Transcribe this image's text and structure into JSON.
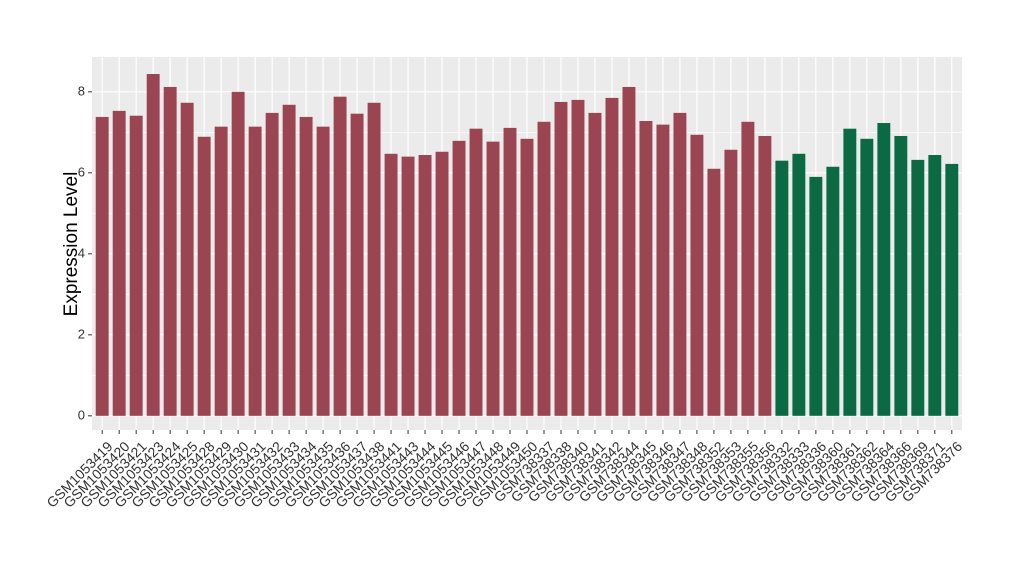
{
  "chart_data": {
    "type": "bar",
    "ylabel": "Expression Level",
    "categories": [
      "GSM1053419",
      "GSM1053420",
      "GSM1053421",
      "GSM1053423",
      "GSM1053424",
      "GSM1053425",
      "GSM1053428",
      "GSM1053429",
      "GSM1053430",
      "GSM1053431",
      "GSM1053432",
      "GSM1053433",
      "GSM1053434",
      "GSM1053435",
      "GSM1053436",
      "GSM1053437",
      "GSM1053438",
      "GSM1053441",
      "GSM1053443",
      "GSM1053444",
      "GSM1053445",
      "GSM1053446",
      "GSM1053447",
      "GSM1053448",
      "GSM1053449",
      "GSM1053450",
      "GSM738337",
      "GSM738338",
      "GSM738340",
      "GSM738341",
      "GSM738342",
      "GSM738344",
      "GSM738345",
      "GSM738346",
      "GSM738347",
      "GSM738348",
      "GSM738352",
      "GSM738353",
      "GSM738355",
      "GSM738356",
      "GSM738332",
      "GSM738333",
      "GSM738336",
      "GSM738360",
      "GSM738361",
      "GSM738362",
      "GSM738364",
      "GSM738366",
      "GSM738369",
      "GSM738371",
      "GSM738376"
    ],
    "values": [
      7.38,
      7.53,
      7.41,
      8.44,
      8.12,
      7.73,
      6.89,
      7.14,
      8.0,
      7.14,
      7.48,
      7.68,
      7.38,
      7.14,
      7.88,
      7.46,
      7.73,
      6.47,
      6.4,
      6.44,
      6.52,
      6.79,
      7.09,
      6.77,
      7.11,
      6.84,
      7.26,
      7.75,
      7.8,
      7.48,
      7.85,
      8.12,
      7.28,
      7.19,
      7.48,
      6.94,
      6.1,
      6.57,
      7.26,
      6.91,
      6.3,
      6.47,
      5.9,
      6.15,
      7.09,
      6.84,
      7.23,
      6.91,
      6.32,
      6.44,
      6.22
    ],
    "colors": [
      "#9b4452",
      "#9b4452",
      "#9b4452",
      "#9b4452",
      "#9b4452",
      "#9b4452",
      "#9b4452",
      "#9b4452",
      "#9b4452",
      "#9b4452",
      "#9b4452",
      "#9b4452",
      "#9b4452",
      "#9b4452",
      "#9b4452",
      "#9b4452",
      "#9b4452",
      "#9b4452",
      "#9b4452",
      "#9b4452",
      "#9b4452",
      "#9b4452",
      "#9b4452",
      "#9b4452",
      "#9b4452",
      "#9b4452",
      "#9b4452",
      "#9b4452",
      "#9b4452",
      "#9b4452",
      "#9b4452",
      "#9b4452",
      "#9b4452",
      "#9b4452",
      "#9b4452",
      "#9b4452",
      "#9b4452",
      "#9b4452",
      "#9b4452",
      "#9b4452",
      "#0b6a44",
      "#0b6a44",
      "#0b6a44",
      "#0b6a44",
      "#0b6a44",
      "#0b6a44",
      "#0b6a44",
      "#0b6a44",
      "#0b6a44",
      "#0b6a44",
      "#0b6a44"
    ],
    "ylim": [
      -0.35,
      8.86
    ],
    "yticks": [
      0,
      2,
      4,
      6,
      8
    ],
    "minor_yticks": [
      1,
      3,
      5,
      7
    ],
    "grid": true
  }
}
